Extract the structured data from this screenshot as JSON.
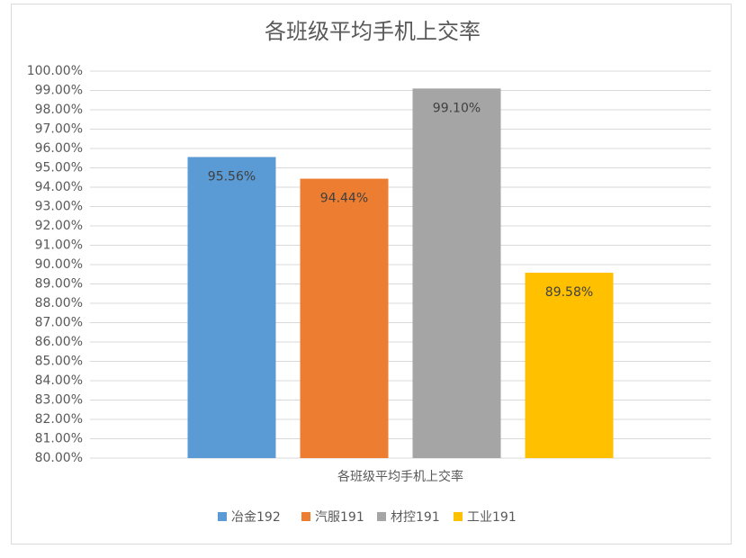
{
  "chart_data": {
    "type": "bar",
    "title": "各班级平均手机上交率",
    "categories": [
      "各班级平均手机上交率"
    ],
    "series": [
      {
        "name": "冶金192",
        "color": "#5b9bd5",
        "values": [
          95.56
        ],
        "value_labels": [
          "95.56%"
        ]
      },
      {
        "name": "汽服191",
        "color": "#ed7d31",
        "values": [
          94.44
        ],
        "value_labels": [
          "94.44%"
        ]
      },
      {
        "name": "材控191",
        "color": "#a5a5a5",
        "values": [
          99.1
        ],
        "value_labels": [
          "99.10%"
        ]
      },
      {
        "name": "工业191",
        "color": "#ffc000",
        "values": [
          89.58
        ],
        "value_labels": [
          "89.58%"
        ]
      }
    ],
    "ylim": [
      80,
      100
    ],
    "yticks": [
      {
        "value": 80,
        "label": "80.00%"
      },
      {
        "value": 81,
        "label": "81.00%"
      },
      {
        "value": 82,
        "label": "82.00%"
      },
      {
        "value": 83,
        "label": "83.00%"
      },
      {
        "value": 84,
        "label": "84.00%"
      },
      {
        "value": 85,
        "label": "85.00%"
      },
      {
        "value": 86,
        "label": "86.00%"
      },
      {
        "value": 87,
        "label": "87.00%"
      },
      {
        "value": 88,
        "label": "88.00%"
      },
      {
        "value": 89,
        "label": "89.00%"
      },
      {
        "value": 90,
        "label": "90.00%"
      },
      {
        "value": 91,
        "label": "91.00%"
      },
      {
        "value": 92,
        "label": "92.00%"
      },
      {
        "value": 93,
        "label": "93.00%"
      },
      {
        "value": 94,
        "label": "94.00%"
      },
      {
        "value": 95,
        "label": "95.00%"
      },
      {
        "value": 96,
        "label": "96.00%"
      },
      {
        "value": 97,
        "label": "97.00%"
      },
      {
        "value": 98,
        "label": "98.00%"
      },
      {
        "value": 99,
        "label": "99.00%"
      },
      {
        "value": 100,
        "label": "100.00%"
      }
    ],
    "grid": true,
    "legend": "bottom"
  }
}
